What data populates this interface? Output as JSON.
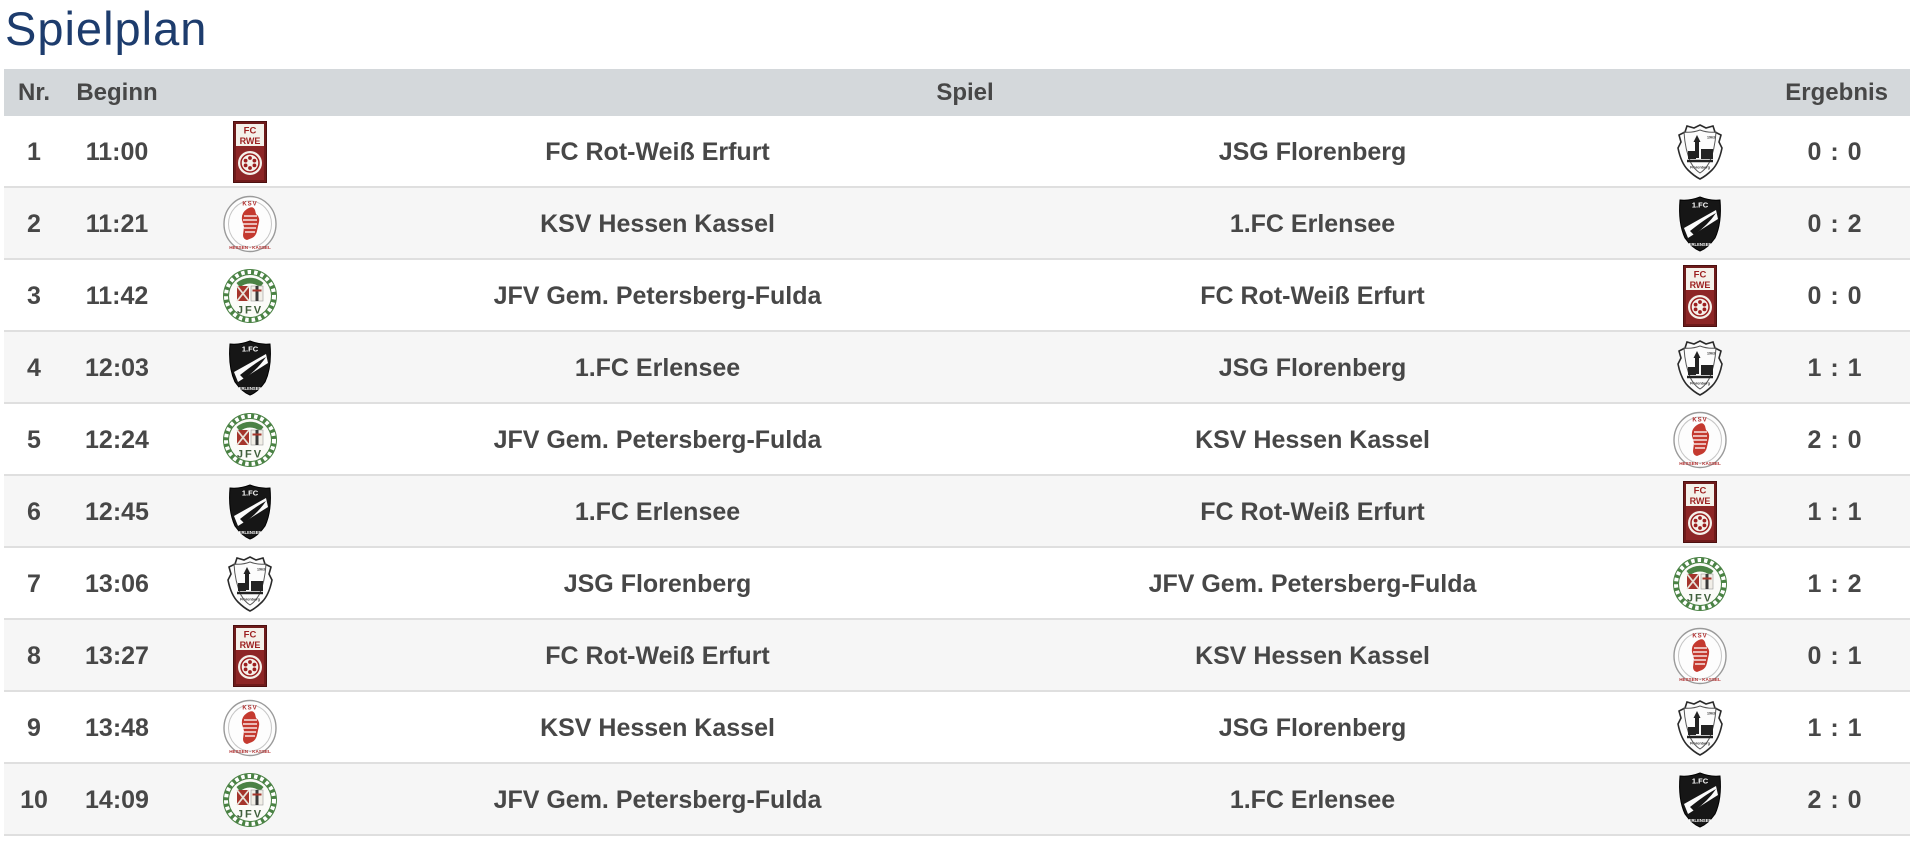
{
  "page": {
    "title": "Spielplan"
  },
  "colors": {
    "title": "#1d3c6d",
    "header_bg": "#d4d8db",
    "row_alt_bg": "#f6f6f6",
    "text": "#474747",
    "border": "#dfdfdf"
  },
  "table": {
    "headers": {
      "nr": "Nr.",
      "beginn": "Beginn",
      "spiel": "Spiel",
      "ergebnis": "Ergebnis"
    },
    "logo_names": {
      "fc-rwe": "FC Rot-Weiß Erfurt crest",
      "ksv-hessen-kassel": "KSV Hessen Kassel crest",
      "jfv-petersberg-fulda": "JFV Gem. Petersberg-Fulda crest",
      "fc-erlensee": "1.FC Erlensee crest",
      "jsg-florenberg": "JSG Florenberg crest"
    },
    "rows": [
      {
        "nr": "1",
        "time": "11:00",
        "home": "FC Rot-Weiß Erfurt",
        "home_logo": "fc-rwe",
        "away": "JSG Florenberg",
        "away_logo": "jsg-florenberg",
        "score": "0 : 0"
      },
      {
        "nr": "2",
        "time": "11:21",
        "home": "KSV Hessen Kassel",
        "home_logo": "ksv-hessen-kassel",
        "away": "1.FC Erlensee",
        "away_logo": "fc-erlensee",
        "score": "0 : 2"
      },
      {
        "nr": "3",
        "time": "11:42",
        "home": "JFV Gem. Petersberg-Fulda",
        "home_logo": "jfv-petersberg-fulda",
        "away": "FC Rot-Weiß Erfurt",
        "away_logo": "fc-rwe",
        "score": "0 : 0"
      },
      {
        "nr": "4",
        "time": "12:03",
        "home": "1.FC Erlensee",
        "home_logo": "fc-erlensee",
        "away": "JSG Florenberg",
        "away_logo": "jsg-florenberg",
        "score": "1 : 1"
      },
      {
        "nr": "5",
        "time": "12:24",
        "home": "JFV Gem. Petersberg-Fulda",
        "home_logo": "jfv-petersberg-fulda",
        "away": "KSV Hessen Kassel",
        "away_logo": "ksv-hessen-kassel",
        "score": "2 : 0"
      },
      {
        "nr": "6",
        "time": "12:45",
        "home": "1.FC Erlensee",
        "home_logo": "fc-erlensee",
        "away": "FC Rot-Weiß Erfurt",
        "away_logo": "fc-rwe",
        "score": "1 : 1"
      },
      {
        "nr": "7",
        "time": "13:06",
        "home": "JSG Florenberg",
        "home_logo": "jsg-florenberg",
        "away": "JFV Gem. Petersberg-Fulda",
        "away_logo": "jfv-petersberg-fulda",
        "score": "1 : 2"
      },
      {
        "nr": "8",
        "time": "13:27",
        "home": "FC Rot-Weiß Erfurt",
        "home_logo": "fc-rwe",
        "away": "KSV Hessen Kassel",
        "away_logo": "ksv-hessen-kassel",
        "score": "0 : 1"
      },
      {
        "nr": "9",
        "time": "13:48",
        "home": "KSV Hessen Kassel",
        "home_logo": "ksv-hessen-kassel",
        "away": "JSG Florenberg",
        "away_logo": "jsg-florenberg",
        "score": "1 : 1"
      },
      {
        "nr": "10",
        "time": "14:09",
        "home": "JFV Gem. Petersberg-Fulda",
        "home_logo": "jfv-petersberg-fulda",
        "away": "1.FC Erlensee",
        "away_logo": "fc-erlensee",
        "score": "2 : 0"
      }
    ]
  }
}
